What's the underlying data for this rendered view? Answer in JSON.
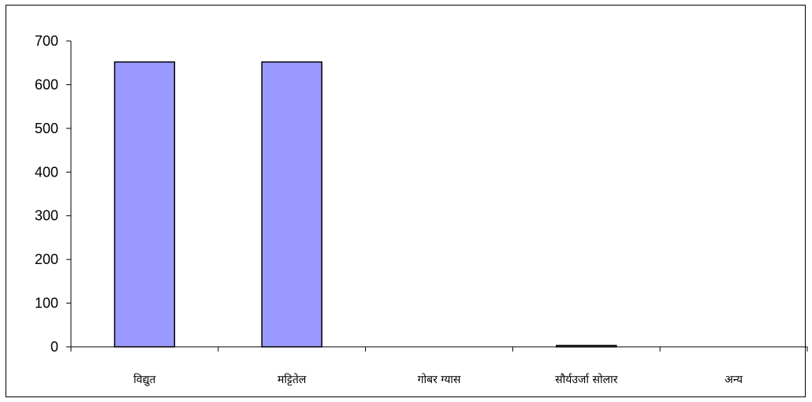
{
  "chart_data": {
    "type": "bar",
    "categories": [
      "विद्युत",
      "मट्टितेल",
      "गोबर ग्यास",
      "सौर्यउर्जा सोलार",
      "अन्य"
    ],
    "values": [
      652,
      652,
      0,
      3,
      0
    ],
    "ylim": [
      0,
      700
    ],
    "yticks": [
      0,
      100,
      200,
      300,
      400,
      500,
      600,
      700
    ],
    "bar_color": "#9999ff",
    "grid": false,
    "legend": "none"
  }
}
